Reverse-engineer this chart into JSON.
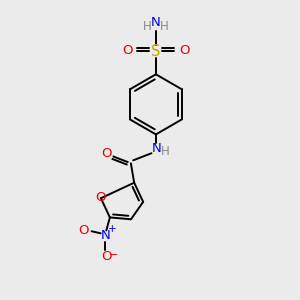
{
  "bg_color": "#ebebeb",
  "atom_colors": {
    "C": "#000000",
    "N": "#0000ee",
    "O": "#ee0000",
    "S": "#bbaa00",
    "H": "#888888"
  },
  "bond_color": "#000000",
  "figsize": [
    3.0,
    3.0
  ],
  "dpi": 100
}
